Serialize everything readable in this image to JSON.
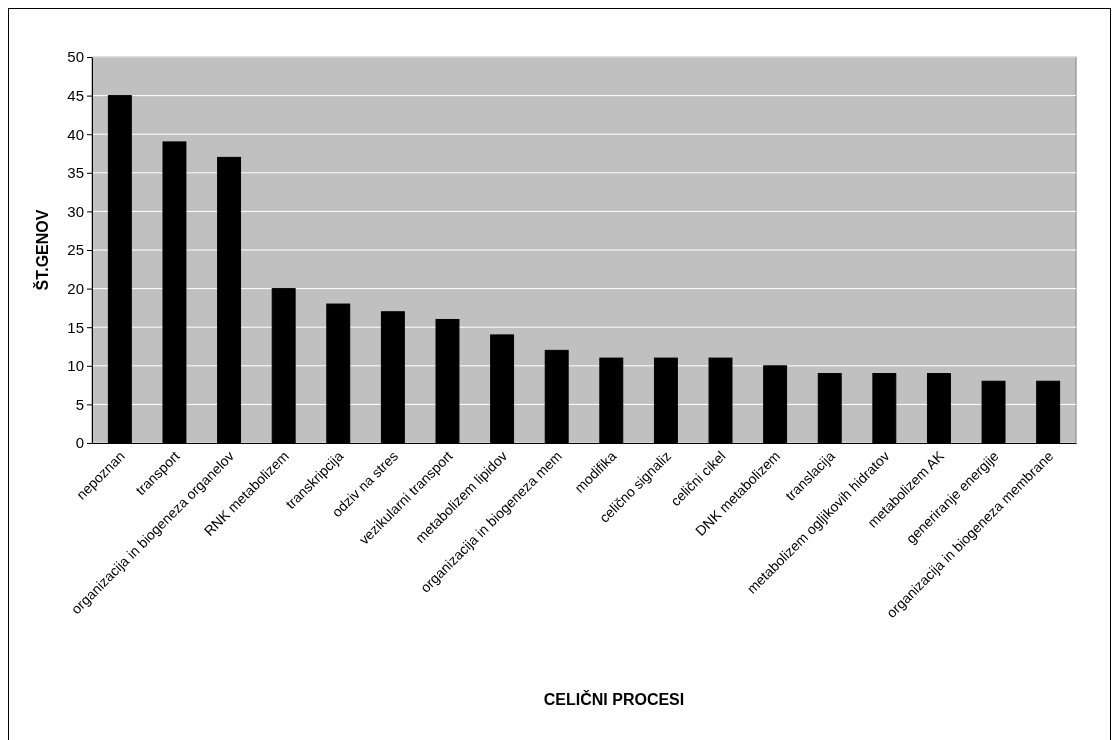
{
  "chart_data": {
    "type": "bar",
    "xlabel": "CELIČNI PROCESI",
    "ylabel": "ŠT.GENOV",
    "categories": [
      "nepoznan",
      "transport",
      "organizacija in biogeneza organelov",
      "RNK metabolizem",
      "transkripcija",
      "odziv na stres",
      "vezikularni transport",
      "metabolizem lipidov",
      "organizacija in biogeneza mem",
      "modifika",
      "celično signaliz",
      "celični cikel",
      "DNK metabolizem",
      "translacija",
      "metabolizem ogljikovih hidratov",
      "metabolizem AK",
      "generiranje energije",
      "organizacija in biogeneza membrane"
    ],
    "values": [
      45,
      39,
      37,
      20,
      18,
      17,
      16,
      14,
      12,
      11,
      11,
      11,
      10,
      9,
      9,
      9,
      8,
      8
    ],
    "color": "#000000",
    "ylim": [
      0,
      50
    ],
    "yticks": [
      0,
      5,
      10,
      15,
      20,
      25,
      30,
      35,
      40,
      45,
      50
    ],
    "grid": "y"
  }
}
